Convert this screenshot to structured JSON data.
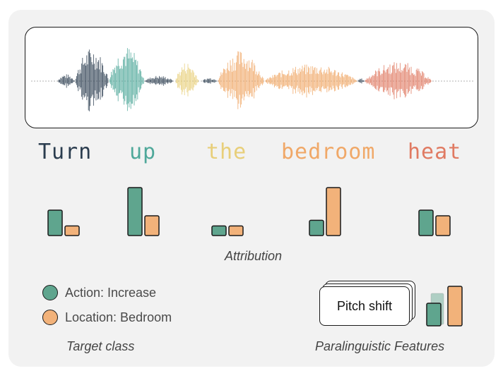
{
  "colors": {
    "turn": "#2b3d4f",
    "up": "#4fa89a",
    "the": "#e8cf7a",
    "bedroom": "#f0a868",
    "heat": "#e07a62",
    "action": "#5fa58e",
    "location": "#f2b27a",
    "panel_bg": "#f2f2f2"
  },
  "words": [
    {
      "text": "Turn",
      "color": "#2b3d4f",
      "action": 0.45,
      "location": 0.17
    },
    {
      "text": "up",
      "color": "#4fa89a",
      "action": 0.85,
      "location": 0.35
    },
    {
      "text": "the",
      "color": "#e8cf7a",
      "action": 0.17,
      "location": 0.17
    },
    {
      "text": "bedroom",
      "color": "#f0a868",
      "action": 0.27,
      "location": 0.85
    },
    {
      "text": "heat",
      "color": "#e07a62",
      "action": 0.45,
      "location": 0.35
    }
  ],
  "captions": {
    "attribution": "Attribution",
    "target_class": "Target class",
    "paralinguistic": "Paralinguistic Features"
  },
  "legend": [
    {
      "label": "Action: Increase",
      "color": "#5fa58e"
    },
    {
      "label": "Location: Bedroom",
      "color": "#f2b27a"
    }
  ],
  "pitch_shift": {
    "label": "Pitch shift"
  }
}
